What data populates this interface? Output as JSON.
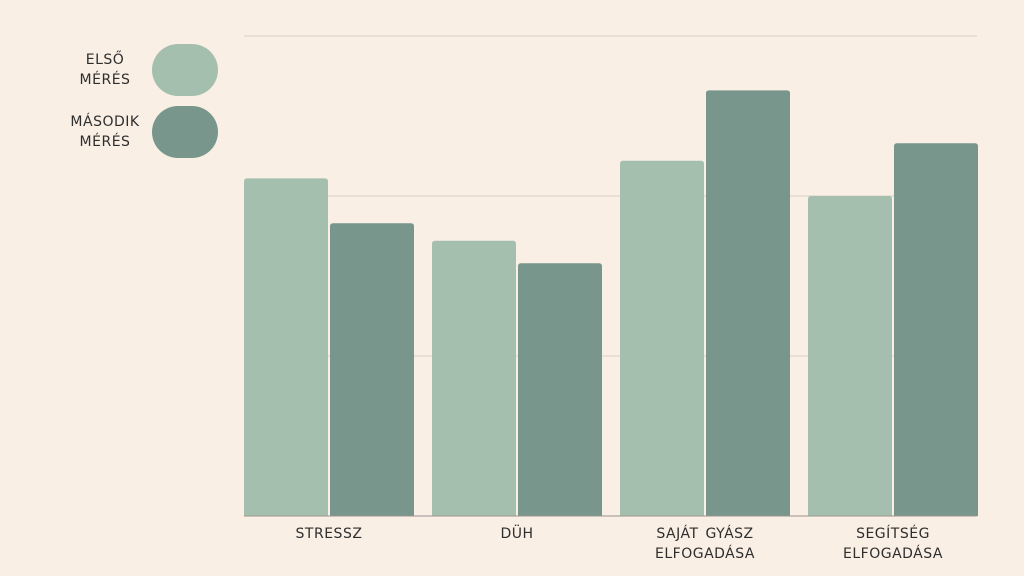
{
  "chart_data": {
    "type": "bar",
    "categories": [
      "STRESSZ",
      "DÜH",
      "SAJÁT  GYÁSZ ELFOGADÁSA",
      "SEGÍTSÉG ELFOGADÁSA"
    ],
    "series": [
      {
        "name": "ELSŐ MÉRÉS",
        "color": "#a5bfae",
        "values": [
          2.11,
          1.72,
          2.22,
          2.0
        ]
      },
      {
        "name": "MÁSODIK MÉRÉS",
        "color": "#78968c",
        "values": [
          1.83,
          1.58,
          2.66,
          2.33
        ]
      }
    ],
    "ylim": [
      0,
      3
    ],
    "yticks": [
      1,
      2,
      3
    ],
    "grid": true
  }
}
